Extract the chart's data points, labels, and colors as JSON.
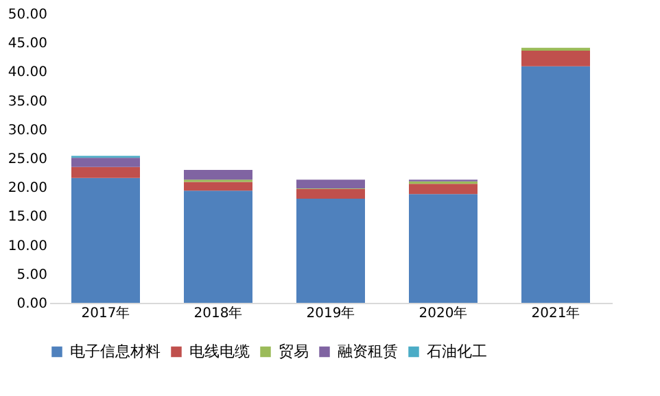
{
  "chart_data": {
    "type": "bar",
    "stacked": true,
    "categories": [
      "2017年",
      "2018年",
      "2019年",
      "2020年",
      "2021年"
    ],
    "series": [
      {
        "name": "电子信息材料",
        "color": "#4f81bd",
        "values": [
          21.6,
          19.4,
          18.0,
          18.8,
          40.9
        ]
      },
      {
        "name": "电线电缆",
        "color": "#c0504d",
        "values": [
          1.9,
          1.5,
          1.7,
          1.8,
          2.7
        ]
      },
      {
        "name": "贸易",
        "color": "#9bbb59",
        "values": [
          0.0,
          0.4,
          0.1,
          0.4,
          0.5
        ]
      },
      {
        "name": "融资租赁",
        "color": "#8064a2",
        "values": [
          1.6,
          1.7,
          1.5,
          0.3,
          0.0
        ]
      },
      {
        "name": "石油化工",
        "color": "#4bacc6",
        "values": [
          0.3,
          0.0,
          0.0,
          0.0,
          0.0
        ]
      }
    ],
    "ylim": [
      0,
      50
    ],
    "yticks": [
      {
        "value": 0,
        "label": "0.00"
      },
      {
        "value": 5,
        "label": "5.00"
      },
      {
        "value": 10,
        "label": "10.00"
      },
      {
        "value": 15,
        "label": "15.00"
      },
      {
        "value": 20,
        "label": "20.00"
      },
      {
        "value": 25,
        "label": "25.00"
      },
      {
        "value": 30,
        "label": "30.00"
      },
      {
        "value": 35,
        "label": "35.00"
      },
      {
        "value": 40,
        "label": "40.00"
      },
      {
        "value": 45,
        "label": "45.00"
      },
      {
        "value": 50,
        "label": "50.00"
      }
    ],
    "grid": false,
    "legend": "bottom"
  }
}
